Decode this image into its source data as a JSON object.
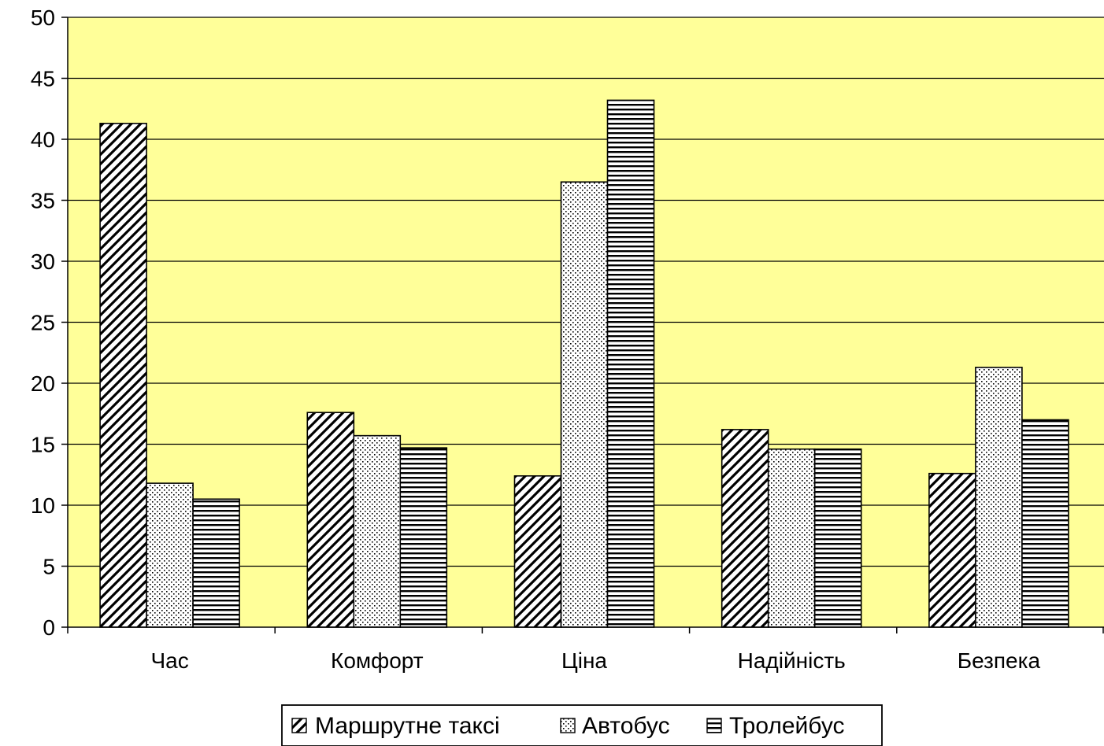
{
  "colors": {
    "plot_background": "#FFFF99",
    "bar_fill": "#FFFFFF",
    "bar_pattern": "#000000",
    "gridline": "#000000"
  },
  "chart_data": {
    "type": "bar",
    "categories": [
      "Час",
      "Комфорт",
      "Ціна",
      "Надійність",
      "Безпека"
    ],
    "series": [
      {
        "name": "Маршрутне таксі",
        "pattern": "diagonal-hatch",
        "values": [
          41.3,
          17.6,
          12.4,
          16.2,
          12.6
        ]
      },
      {
        "name": "Автобус",
        "pattern": "dots",
        "values": [
          11.8,
          15.7,
          36.5,
          14.6,
          21.3
        ]
      },
      {
        "name": "Тролейбус",
        "pattern": "horizontal-lines",
        "values": [
          10.5,
          14.7,
          43.2,
          14.6,
          17.0
        ]
      }
    ],
    "ylim": [
      0,
      50
    ],
    "yticks": [
      "0",
      "5",
      "10",
      "15",
      "20",
      "25",
      "30",
      "35",
      "40",
      "45",
      "50"
    ],
    "grid": true,
    "legend_position": "bottom",
    "title": "",
    "xlabel": "",
    "ylabel": ""
  }
}
